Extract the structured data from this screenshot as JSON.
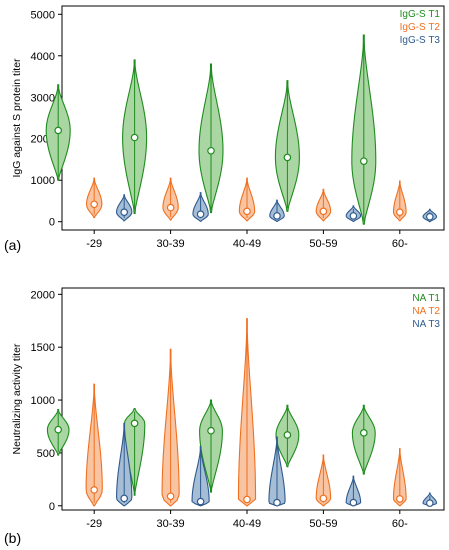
{
  "chart_data": [
    {
      "type": "violin",
      "panel_label": "(a)",
      "ylabel": "IgG against S protein titer",
      "ylim": [
        -200,
        5200
      ],
      "yticks": [
        0,
        1000,
        2000,
        3000,
        4000,
        5000
      ],
      "categories": [
        "-29",
        "30-39",
        "40-49",
        "50-59",
        "60-"
      ],
      "legend_position": "top-right",
      "grid": false,
      "series": [
        {
          "name": "IgG-S T1",
          "color": "#1e8c1e",
          "fill": "#a9d6a2",
          "medians": [
            2200,
            2030,
            1710,
            1550,
            1460
          ],
          "ranges": [
            [
              1000,
              3300
            ],
            [
              200,
              3900
            ],
            [
              220,
              3800
            ],
            [
              250,
              3400
            ],
            [
              -60,
              4500
            ]
          ],
          "widths": [
            1.0,
            1.0,
            1.0,
            1.0,
            1.0
          ]
        },
        {
          "name": "IgG-S T2",
          "color": "#f07020",
          "fill": "#f8c4a2",
          "medians": [
            420,
            340,
            250,
            250,
            230
          ],
          "ranges": [
            [
              100,
              1050
            ],
            [
              40,
              1050
            ],
            [
              20,
              1050
            ],
            [
              20,
              780
            ],
            [
              20,
              980
            ]
          ],
          "widths": [
            0.85,
            0.85,
            0.85,
            0.8,
            0.7
          ]
        },
        {
          "name": "IgG-S T3",
          "color": "#2f5a8f",
          "fill": "#a6bdd6",
          "medians": [
            230,
            180,
            140,
            140,
            120
          ],
          "ranges": [
            [
              20,
              650
            ],
            [
              10,
              700
            ],
            [
              5,
              520
            ],
            [
              5,
              380
            ],
            [
              0,
              300
            ]
          ],
          "widths": [
            0.85,
            0.85,
            0.8,
            0.8,
            0.75
          ]
        }
      ]
    },
    {
      "type": "violin",
      "panel_label": "(b)",
      "ylabel": "Neutralizing activity titer",
      "ylim": [
        -40,
        2060
      ],
      "yticks": [
        0,
        500,
        1000,
        1500,
        2000
      ],
      "categories": [
        "-29",
        "30-39",
        "40-49",
        "50-59",
        "60-"
      ],
      "legend_position": "top-right",
      "grid": false,
      "series": [
        {
          "name": "NA T1",
          "color": "#1e8c1e",
          "fill": "#a9d6a2",
          "medians": [
            720,
            780,
            710,
            670,
            690
          ],
          "ranges": [
            [
              480,
              910
            ],
            [
              100,
              920
            ],
            [
              130,
              1000
            ],
            [
              370,
              950
            ],
            [
              300,
              950
            ]
          ],
          "widths": [
            0.9,
            0.85,
            0.95,
            0.95,
            0.95
          ]
        },
        {
          "name": "NA T2",
          "color": "#f07020",
          "fill": "#f8c4a2",
          "medians": [
            150,
            90,
            60,
            70,
            65
          ],
          "ranges": [
            [
              0,
              1150
            ],
            [
              0,
              1480
            ],
            [
              0,
              1770
            ],
            [
              0,
              480
            ],
            [
              0,
              540
            ]
          ],
          "widths": [
            0.9,
            0.95,
            0.95,
            0.8,
            0.7
          ]
        },
        {
          "name": "NA T3",
          "color": "#2f5a8f",
          "fill": "#a6bdd6",
          "medians": [
            70,
            40,
            30,
            30,
            25
          ],
          "ranges": [
            [
              0,
              780
            ],
            [
              0,
              560
            ],
            [
              0,
              650
            ],
            [
              0,
              280
            ],
            [
              0,
              120
            ]
          ],
          "widths": [
            0.85,
            0.95,
            0.9,
            0.8,
            0.75
          ]
        }
      ]
    }
  ]
}
